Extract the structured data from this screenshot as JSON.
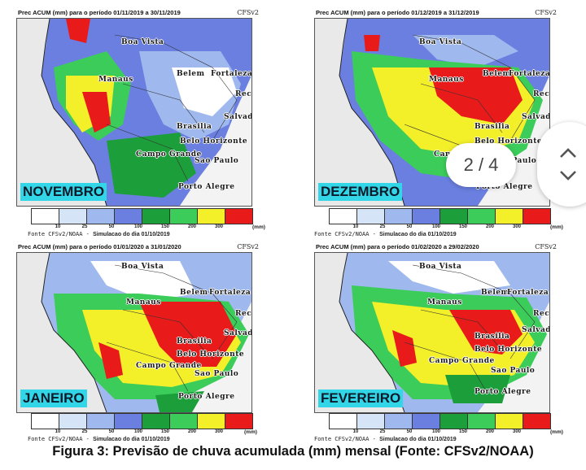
{
  "panels": [
    {
      "title": "Prec ACUM (mm) para o período 01/11/2019 a 30/11/2019",
      "model": "CFSv2",
      "month": "NOVEMBRO"
    },
    {
      "title": "Prec ACUM (mm) para o período 01/12/2019 a 31/12/2019",
      "model": "CFSv2",
      "month": "DEZEMBRO"
    },
    {
      "title": "Prec ACUM (mm) para o período 01/01/2020 a 31/01/2020",
      "model": "CFSv2",
      "month": "JANEIRO"
    },
    {
      "title": "Prec ACUM (mm) para o período 01/02/2020 a 29/02/2020",
      "model": "CFSv2",
      "month": "FEVEREIRO"
    }
  ],
  "cities": {
    "boa_vista": "Boa Vista",
    "manaus": "Manaus",
    "belem": "Belem",
    "fortaleza": "Fortaleza",
    "recife": "Recife",
    "salvador": "Salvador",
    "brasilia": "Brasilia",
    "belo_horizonte": "Belo Horizonte",
    "campo_grande": "Campo Grande",
    "sao_paulo": "Sao Paulo",
    "porto_alegre": "Porto Alegre"
  },
  "legend": {
    "ticks": [
      "10",
      "25",
      "50",
      "100",
      "150",
      "200",
      "300"
    ],
    "unit": "(mm)",
    "colors": [
      "#ffffff",
      "#d6e4f7",
      "#9fb8ee",
      "#6a7fe0",
      "#1c9e3a",
      "#3ccc5a",
      "#f3f02a",
      "#e81a1a"
    ],
    "fonte_prefix": "Fonte CFSv2/NOAA -",
    "fonte_sim": "Simulacao do dia 01/10/2019"
  },
  "caption": "Figura 3: Previsão de chuva acumulada (mm) mensal (Fonte: CFSv2/NOAA)",
  "viewer": {
    "pager": "2 / 4"
  }
}
